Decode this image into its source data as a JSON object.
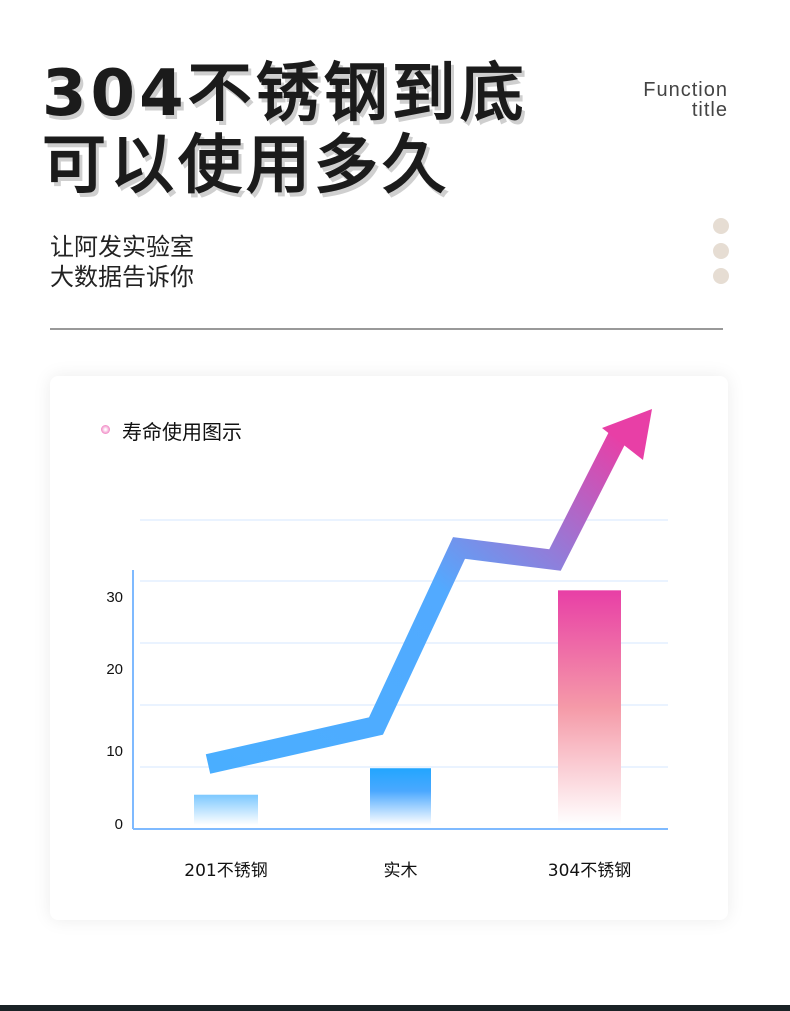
{
  "header": {
    "title_line1": "304不锈钢到底",
    "title_line2": "可以使用多久",
    "function_line1": "Function",
    "function_line2": "title",
    "subtitle_line1": "让阿发实验室",
    "subtitle_line2": "大数据告诉你"
  },
  "colors": {
    "dots": "#e6ddd3",
    "bar_201": "#7cc8ff",
    "bar_wood": "#22a6ff",
    "bar_304": "#e83fa6",
    "arrow_start": "#4aaeff",
    "arrow_end": "#e83fa6"
  },
  "chart_data": {
    "type": "bar",
    "title": "寿命使用图示",
    "categories": [
      "201不锈钢",
      "实木",
      "304不锈钢"
    ],
    "values": [
      4,
      7.5,
      31
    ],
    "yticks": [
      "0",
      "10",
      "20",
      "30"
    ],
    "ylim": [
      0,
      34
    ],
    "grid": true,
    "trend_arrow": "rising"
  }
}
